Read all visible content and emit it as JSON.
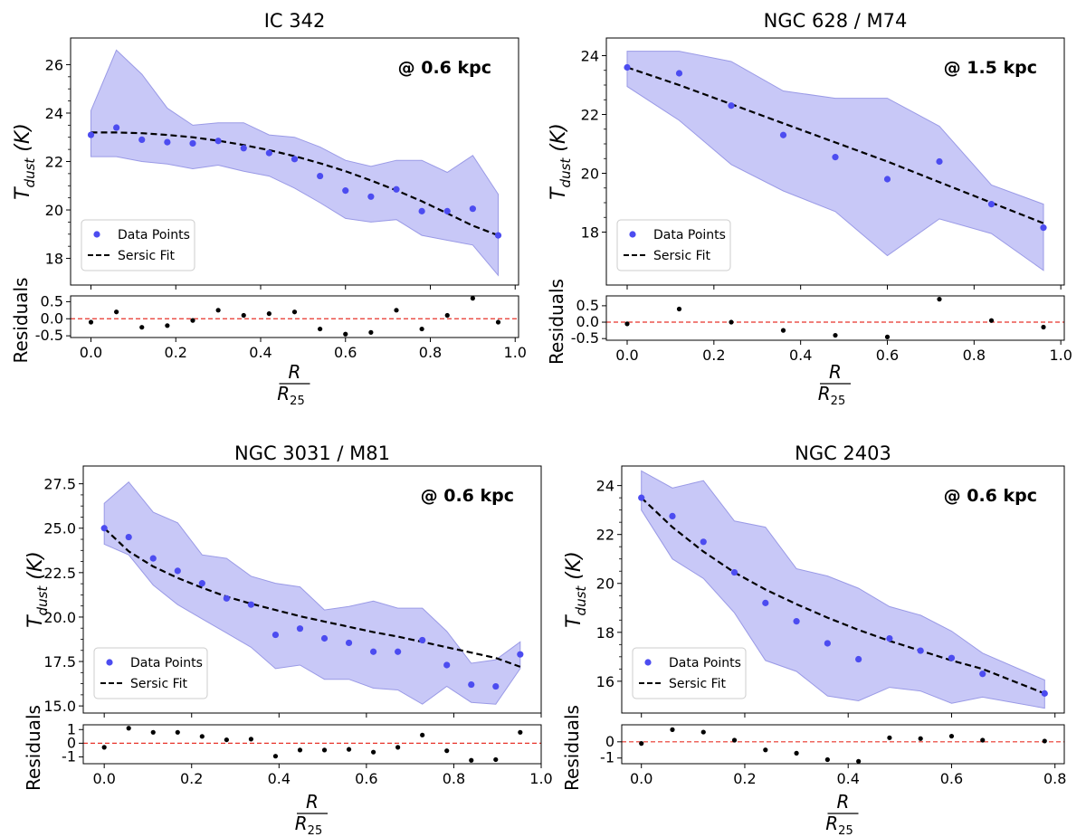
{
  "figure": {
    "xlabel_num": "R",
    "xlabel_den": "R",
    "xlabel_den_sub": "25"
  },
  "chart_data": [
    {
      "type": "scatter",
      "title": "IC 342",
      "annotation": "@ 0.6 kpc",
      "ylabel_main": "T",
      "ylabel_sub": "dust",
      "ylabel_unit": "(K)",
      "residuals_label": "Residuals",
      "legend": {
        "points": "Data Points",
        "fit": "Sersic Fit",
        "placement": "lower-left"
      },
      "xlim": [
        -0.048,
        1.008
      ],
      "xticks": [
        0.0,
        0.2,
        0.4,
        0.6,
        0.8,
        1.0
      ],
      "xtick_labels": [
        "0.0",
        "0.2",
        "0.4",
        "0.6",
        "0.8",
        "1.0"
      ],
      "ylim": [
        16.9,
        27.1
      ],
      "yticks": [
        18,
        20,
        22,
        24,
        26
      ],
      "ytick_labels": [
        "18",
        "20",
        "22",
        "24",
        "26"
      ],
      "rlim": [
        -0.55,
        0.67
      ],
      "rticks": [
        -0.5,
        0.0,
        0.5
      ],
      "rtick_labels": [
        "-0.5",
        "0.0",
        "0.5"
      ],
      "x": [
        0.0,
        0.06,
        0.12,
        0.18,
        0.24,
        0.3,
        0.36,
        0.42,
        0.48,
        0.54,
        0.6,
        0.66,
        0.72,
        0.78,
        0.84,
        0.9,
        0.96
      ],
      "y": [
        23.1,
        23.4,
        22.9,
        22.8,
        22.75,
        22.85,
        22.55,
        22.35,
        22.1,
        21.4,
        20.8,
        20.55,
        20.85,
        19.95,
        19.95,
        20.05,
        18.95
      ],
      "band_upper": [
        24.1,
        26.6,
        25.6,
        24.2,
        23.5,
        23.6,
        23.6,
        23.1,
        23.0,
        22.6,
        22.05,
        21.8,
        22.05,
        22.05,
        21.55,
        22.25,
        20.65
      ],
      "band_lower": [
        22.2,
        22.2,
        22.0,
        21.9,
        21.7,
        21.85,
        21.6,
        21.4,
        20.9,
        20.3,
        19.65,
        19.5,
        19.6,
        18.95,
        18.75,
        18.55,
        17.3
      ],
      "fit": [
        23.2,
        23.2,
        23.17,
        23.1,
        23.0,
        22.86,
        22.68,
        22.47,
        22.22,
        21.93,
        21.6,
        21.22,
        20.81,
        20.36,
        19.86,
        19.35,
        18.95
      ],
      "residuals": [
        -0.1,
        0.2,
        -0.25,
        -0.2,
        -0.05,
        0.25,
        0.1,
        0.15,
        0.2,
        -0.3,
        -0.45,
        -0.4,
        0.25,
        -0.3,
        0.1,
        0.6,
        -0.1
      ]
    },
    {
      "type": "scatter",
      "title": "NGC 628 / M74",
      "annotation": "@ 1.5 kpc",
      "ylabel_main": "T",
      "ylabel_sub": "dust",
      "ylabel_unit": "(K)",
      "residuals_label": "Residuals",
      "legend": {
        "points": "Data Points",
        "fit": "Sersic Fit",
        "placement": "lower-left"
      },
      "xlim": [
        -0.048,
        1.008
      ],
      "xticks": [
        0.0,
        0.2,
        0.4,
        0.6,
        0.8,
        1.0
      ],
      "xtick_labels": [
        "0.0",
        "0.2",
        "0.4",
        "0.6",
        "0.8",
        "1.0"
      ],
      "ylim": [
        16.2,
        24.6
      ],
      "yticks": [
        18,
        20,
        22,
        24
      ],
      "ytick_labels": [
        "18",
        "20",
        "22",
        "24"
      ],
      "rlim": [
        -0.55,
        0.8
      ],
      "rticks": [
        -0.5,
        0.0,
        0.5
      ],
      "rtick_labels": [
        "-0.5",
        "0.0",
        "0.5"
      ],
      "x": [
        0.0,
        0.12,
        0.24,
        0.36,
        0.48,
        0.6,
        0.72,
        0.84,
        0.96
      ],
      "y": [
        23.6,
        23.4,
        22.3,
        21.3,
        20.55,
        19.8,
        20.4,
        18.95,
        18.15
      ],
      "band_upper": [
        24.15,
        24.15,
        23.8,
        22.8,
        22.55,
        22.55,
        21.6,
        19.6,
        18.95
      ],
      "band_lower": [
        22.95,
        21.8,
        20.3,
        19.4,
        18.7,
        17.2,
        18.45,
        17.95,
        16.7
      ],
      "fit": [
        23.6,
        23.0,
        22.35,
        21.7,
        21.05,
        20.4,
        19.7,
        19.0,
        18.3
      ],
      "residuals": [
        -0.05,
        0.4,
        0.0,
        -0.25,
        -0.4,
        -0.45,
        0.7,
        0.05,
        -0.15
      ]
    },
    {
      "type": "scatter",
      "title": "NGC 3031 / M81",
      "annotation": "@ 0.6 kpc",
      "ylabel_main": "T",
      "ylabel_sub": "dust",
      "ylabel_unit": "(K)",
      "residuals_label": "Residuals",
      "legend": {
        "points": "Data Points",
        "fit": "Sersic Fit",
        "placement": "lower-left"
      },
      "xlim": [
        -0.048,
        1.0
      ],
      "xticks": [
        0.0,
        0.2,
        0.4,
        0.6,
        0.8,
        1.0
      ],
      "xtick_labels": [
        "0.0",
        "0.2",
        "0.4",
        "0.6",
        "0.8",
        "1.0"
      ],
      "ylim": [
        14.6,
        28.5
      ],
      "yticks": [
        15.0,
        17.5,
        20.0,
        22.5,
        25.0,
        27.5
      ],
      "ytick_labels": [
        "15.0",
        "17.5",
        "20.0",
        "22.5",
        "25.0",
        "27.5"
      ],
      "rlim": [
        -1.5,
        1.35
      ],
      "rticks": [
        -1,
        0,
        1
      ],
      "rtick_labels": [
        "-1",
        "0",
        "1"
      ],
      "x": [
        0.0,
        0.056,
        0.112,
        0.168,
        0.224,
        0.28,
        0.336,
        0.392,
        0.448,
        0.504,
        0.56,
        0.616,
        0.672,
        0.728,
        0.784,
        0.84,
        0.896,
        0.952
      ],
      "y": [
        25.0,
        24.5,
        23.3,
        22.6,
        21.9,
        21.05,
        20.7,
        19.0,
        19.35,
        18.8,
        18.55,
        18.05,
        18.05,
        18.7,
        17.3,
        16.2,
        16.1,
        17.9
      ],
      "band_upper": [
        26.4,
        27.6,
        25.9,
        25.3,
        23.5,
        23.3,
        22.3,
        21.9,
        21.7,
        20.4,
        20.6,
        20.9,
        20.5,
        20.5,
        19.2,
        17.4,
        17.6,
        18.6
      ],
      "band_lower": [
        24.1,
        23.5,
        21.8,
        20.7,
        19.9,
        19.1,
        18.3,
        17.1,
        17.3,
        16.5,
        16.5,
        16.0,
        15.9,
        15.1,
        16.1,
        15.2,
        15.1,
        17.1
      ],
      "fit": [
        25.0,
        23.7,
        22.85,
        22.2,
        21.65,
        21.15,
        20.75,
        20.4,
        20.05,
        19.75,
        19.45,
        19.15,
        18.9,
        18.6,
        18.3,
        18.0,
        17.7,
        17.2
      ],
      "residuals": [
        -0.3,
        1.1,
        0.8,
        0.8,
        0.5,
        0.25,
        0.3,
        -0.95,
        -0.5,
        -0.5,
        -0.45,
        -0.65,
        -0.3,
        0.6,
        -0.55,
        -1.25,
        -1.2,
        0.8
      ]
    },
    {
      "type": "scatter",
      "title": "NGC 2403",
      "annotation": "@ 0.6 kpc",
      "ylabel_main": "T",
      "ylabel_sub": "dust",
      "ylabel_unit": "(K)",
      "residuals_label": "Residuals",
      "legend": {
        "points": "Data Points",
        "fit": "Sersic Fit",
        "placement": "lower-left"
      },
      "xlim": [
        -0.038,
        0.818
      ],
      "xticks": [
        0.0,
        0.2,
        0.4,
        0.6,
        0.8
      ],
      "xtick_labels": [
        "0.0",
        "0.2",
        "0.4",
        "0.6",
        "0.8"
      ],
      "ylim": [
        14.7,
        24.8
      ],
      "yticks": [
        16,
        18,
        20,
        22,
        24
      ],
      "ytick_labels": [
        "16",
        "18",
        "20",
        "22",
        "24"
      ],
      "rlim": [
        -1.35,
        1.05
      ],
      "rticks": [
        -1,
        0
      ],
      "rtick_labels": [
        "-1",
        "0"
      ],
      "x": [
        0.0,
        0.06,
        0.12,
        0.18,
        0.24,
        0.3,
        0.36,
        0.42,
        0.48,
        0.54,
        0.6,
        0.66,
        0.78
      ],
      "y": [
        23.5,
        22.75,
        21.7,
        20.45,
        19.2,
        18.45,
        17.55,
        16.9,
        17.75,
        17.25,
        16.95,
        16.3,
        15.5
      ],
      "band_upper": [
        24.6,
        23.9,
        24.2,
        22.55,
        22.3,
        20.6,
        20.3,
        19.8,
        19.05,
        18.7,
        18.05,
        17.15,
        16.05
      ],
      "band_lower": [
        23.0,
        21.0,
        20.2,
        18.8,
        16.85,
        16.4,
        15.4,
        15.2,
        15.75,
        15.6,
        15.1,
        15.35,
        14.9
      ],
      "fit": [
        23.5,
        22.3,
        21.3,
        20.45,
        19.75,
        19.15,
        18.6,
        18.1,
        17.65,
        17.25,
        16.85,
        16.5,
        15.5
      ],
      "residuals": [
        -0.1,
        0.75,
        0.6,
        0.1,
        -0.5,
        -0.7,
        -1.1,
        -1.2,
        0.25,
        0.2,
        0.35,
        0.1,
        0.05
      ]
    }
  ]
}
